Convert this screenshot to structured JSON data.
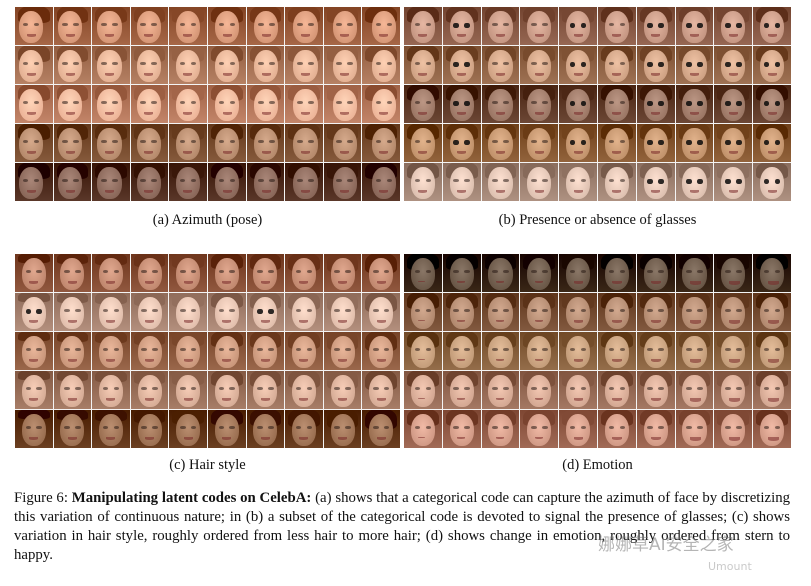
{
  "panels": [
    {
      "id": "a",
      "caption": "(a) Azimuth (pose)"
    },
    {
      "id": "b",
      "caption": "(b) Presence or absence of glasses"
    },
    {
      "id": "c",
      "caption": "(c) Hair style"
    },
    {
      "id": "d",
      "caption": "(d) Emotion"
    }
  ],
  "figure_caption": {
    "label": "Figure 6: ",
    "bold": "Manipulating latent codes on CelebA:",
    "text": " (a) shows that a categorical code can capture the azimuth of face by discretizing this variation of continuous nature; in (b) a subset of the categorical code is devoted to signal the presence of glasses; (c) shows variation in hair style, roughly ordered from less hair to more hair; (d) shows change in emotion, roughly ordered from stern to happy."
  },
  "watermark": {
    "text": "娜娜草AI安全之家",
    "sub": "Umount"
  },
  "colors": {
    "row_tones_a": [
      "#c98a6a",
      "#d9a487",
      "#e6a88c",
      "#a97d5f",
      "#7d5a4c"
    ],
    "row_tones_b": [
      "#b98a76",
      "#c29577",
      "#8f6a58",
      "#b5865f",
      "#d1b4a4"
    ],
    "row_tones_c": [
      "#b47b62",
      "#d6b2a0",
      "#bd8a6e",
      "#caa08a",
      "#8e6244"
    ],
    "row_tones_d": [
      "#5d4a3a",
      "#a57c62",
      "#b7906d",
      "#c79b86",
      "#c48d79"
    ]
  }
}
